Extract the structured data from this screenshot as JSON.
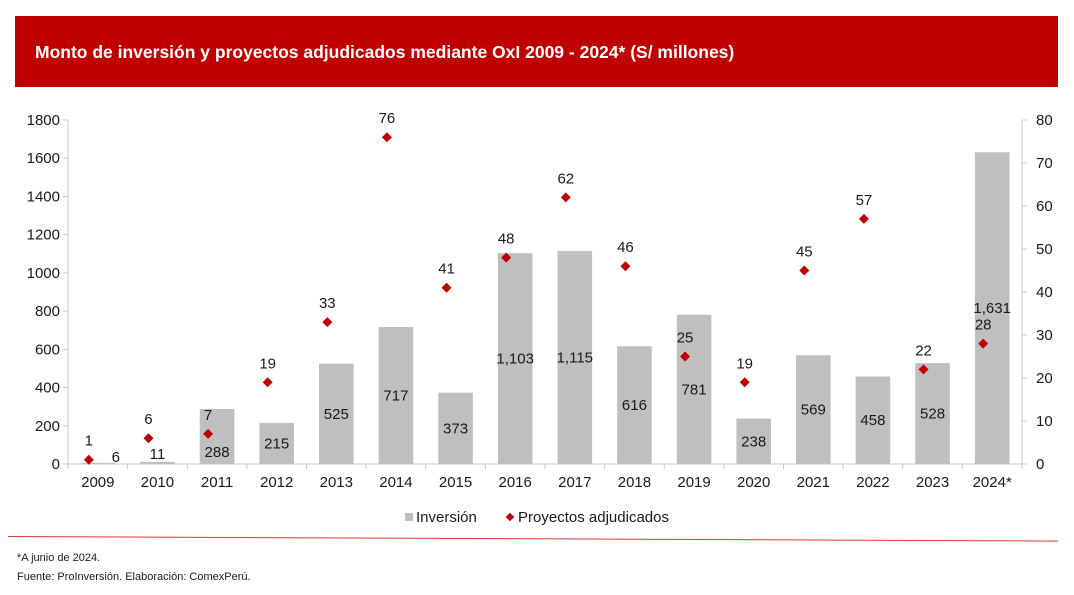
{
  "header": {
    "title": "Monto de inversión y proyectos adjudicados mediante OxI 2009 - 2024* (S/ millones)"
  },
  "colors": {
    "brand_red": "#c00000",
    "bar_gray": "#bfbfbf",
    "marker_red": "#c00000"
  },
  "chart_data": {
    "type": "bar",
    "title": "Monto de inversión y proyectos adjudicados mediante OxI 2009 - 2024* (S/ millones)",
    "categories": [
      "2009",
      "2010",
      "2011",
      "2012",
      "2013",
      "2014",
      "2015",
      "2016",
      "2017",
      "2018",
      "2019",
      "2020",
      "2021",
      "2022",
      "2023",
      "2024*"
    ],
    "series": [
      {
        "name": "Inversión",
        "type": "bar",
        "axis": "left",
        "values": [
          6,
          11,
          288,
          215,
          525,
          717,
          373,
          1103,
          1115,
          616,
          781,
          238,
          569,
          458,
          528,
          1631
        ],
        "labels": [
          "6",
          "11",
          "288",
          "215",
          "525",
          "717",
          "373",
          "1,103",
          "1,115",
          "616",
          "781",
          "238",
          "569",
          "458",
          "528",
          "1,631"
        ]
      },
      {
        "name": "Proyectos adjudicados",
        "type": "scatter",
        "marker": "diamond",
        "axis": "right",
        "values": [
          1,
          6,
          7,
          19,
          33,
          76,
          41,
          48,
          62,
          46,
          25,
          19,
          45,
          57,
          22,
          28
        ],
        "labels": [
          "1",
          "6",
          "7",
          "19",
          "33",
          "76",
          "41",
          "48",
          "62",
          "46",
          "25",
          "19",
          "45",
          "57",
          "22",
          "28"
        ]
      }
    ],
    "y_left": {
      "min": 0,
      "max": 1800,
      "ticks": [
        "0",
        "200",
        "400",
        "600",
        "800",
        "1000",
        "1200",
        "1400",
        "1600",
        "1800"
      ]
    },
    "y_right": {
      "min": 0,
      "max": 80,
      "ticks": [
        "0",
        "10",
        "20",
        "30",
        "40",
        "50",
        "60",
        "70",
        "80"
      ]
    },
    "xlabel": "",
    "ylabel": "",
    "grid": false,
    "legend": {
      "position": "bottom",
      "entries": [
        "Inversión",
        "Proyectos adjudicados"
      ]
    }
  },
  "legend": {
    "bar_label": "Inversión",
    "marker_label": "Proyectos adjudicados"
  },
  "footer": {
    "note": "*A junio de 2024.",
    "source": "Fuente: ProInversión. Elaboración: ComexPerú."
  }
}
